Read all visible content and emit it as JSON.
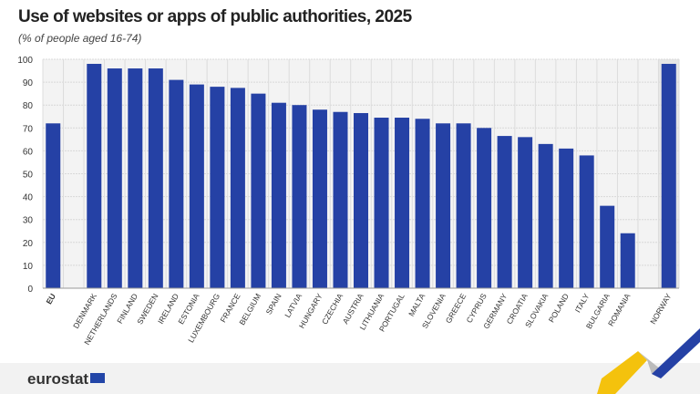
{
  "chart_data": {
    "type": "bar",
    "title": "Use of websites or apps of public authorities, 2025",
    "subtitle": "(% of people aged 16-74)",
    "categories": [
      "EU",
      "DENMARK",
      "NETHERLANDS",
      "FINLAND",
      "SWEDEN",
      "IRELAND",
      "ESTONIA",
      "LUXEMBOURG",
      "FRANCE",
      "BELGIUM",
      "SPAIN",
      "LATVIA",
      "HUNGARY",
      "CZECHIA",
      "AUSTRIA",
      "LITHUANIA",
      "PORTUGAL",
      "MALTA",
      "SLOVENIA",
      "GREECE",
      "CYPRUS",
      "GERMANY",
      "CROATIA",
      "SLOVAKIA",
      "POLAND",
      "ITALY",
      "BULGARIA",
      "ROMANIA",
      "NORWAY"
    ],
    "values": [
      72,
      98,
      96,
      96,
      96,
      91,
      89,
      88,
      87.5,
      85,
      81,
      80,
      78,
      77,
      76.5,
      74.5,
      74.5,
      74,
      72,
      72,
      70,
      66.5,
      66,
      63,
      61,
      58,
      36,
      24,
      98
    ],
    "ylim": [
      0,
      100
    ],
    "yticks": [
      "0",
      "10",
      "20",
      "30",
      "40",
      "50",
      "60",
      "70",
      "80",
      "90",
      "100"
    ],
    "grid": true,
    "bar_color": "#2541a5"
  },
  "footer": {
    "logo": "eurostat"
  }
}
